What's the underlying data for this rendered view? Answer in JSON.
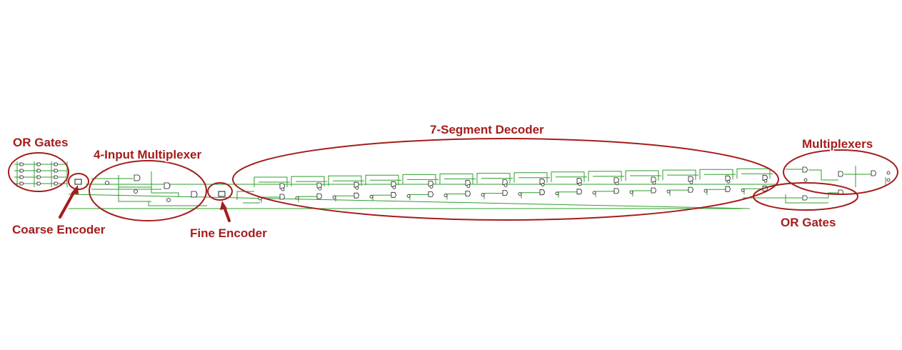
{
  "labels": {
    "or_gates_left": "OR Gates",
    "mux4": "4-Input Multiplexer",
    "seg7": "7-Segment Decoder",
    "multiplexers": "Multiplexers",
    "coarse_encoder": "Coarse Encoder",
    "fine_encoder": "Fine Encoder",
    "or_gates_right": "OR Gates"
  },
  "colors": {
    "annotation": "#a51c1c",
    "wire": "#2e9e2e",
    "gate_outline": "#1a1a1a"
  }
}
